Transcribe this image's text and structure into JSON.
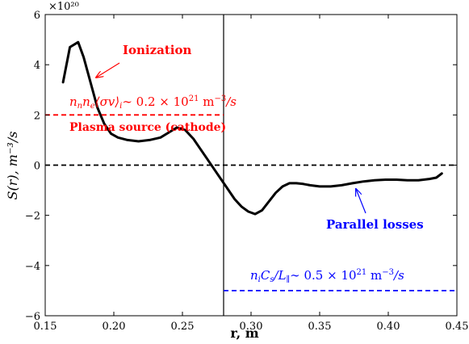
{
  "chart_data": {
    "type": "line",
    "xlabel": "r, m",
    "ylabel": "S(r),  m⁻³/s",
    "y_scale_label": "×10²⁰",
    "xlim": [
      0.15,
      0.45
    ],
    "ylim": [
      -6,
      6
    ],
    "x_ticks": [
      "0.15",
      "0.20",
      "0.25",
      "0.30",
      "0.35",
      "0.40",
      "0.45"
    ],
    "y_ticks": [
      "−6",
      "−4",
      "−2",
      "0",
      "2",
      "4",
      "6"
    ],
    "grid": false,
    "series": [
      {
        "color": "#000000",
        "style": "solid",
        "x": [
          0.163,
          0.168,
          0.174,
          0.178,
          0.183,
          0.188,
          0.193,
          0.198,
          0.203,
          0.21,
          0.218,
          0.226,
          0.234,
          0.24,
          0.246,
          0.252,
          0.258,
          0.263,
          0.268,
          0.273,
          0.278,
          0.283,
          0.288,
          0.293,
          0.298,
          0.303,
          0.308,
          0.313,
          0.318,
          0.323,
          0.328,
          0.333,
          0.338,
          0.343,
          0.35,
          0.358,
          0.366,
          0.374,
          0.382,
          0.39,
          0.398,
          0.406,
          0.414,
          0.422,
          0.43,
          0.435,
          0.439
        ],
        "y": [
          3.3,
          4.7,
          4.9,
          4.3,
          3.3,
          2.3,
          1.65,
          1.25,
          1.1,
          1.0,
          0.95,
          1.0,
          1.1,
          1.3,
          1.5,
          1.4,
          1.05,
          0.65,
          0.25,
          -0.15,
          -0.55,
          -0.95,
          -1.35,
          -1.65,
          -1.85,
          -1.95,
          -1.8,
          -1.45,
          -1.1,
          -0.85,
          -0.72,
          -0.72,
          -0.75,
          -0.8,
          -0.85,
          -0.85,
          -0.8,
          -0.72,
          -0.65,
          -0.6,
          -0.58,
          -0.58,
          -0.6,
          -0.6,
          -0.55,
          -0.5,
          -0.33
        ]
      },
      {
        "color": "#ff0000",
        "style": "dashed",
        "x": [
          0.15,
          0.28
        ],
        "y": [
          2,
          2
        ]
      },
      {
        "color": "#000000",
        "style": "dashed",
        "x": [
          0.15,
          0.45
        ],
        "y": [
          0,
          0
        ]
      },
      {
        "color": "#0000ff",
        "style": "dashed",
        "x": [
          0.28,
          0.45
        ],
        "y": [
          -5,
          -5
        ]
      }
    ],
    "vertical_line": {
      "x": 0.28,
      "color": "#000000"
    },
    "annotations": [
      {
        "text": "Ionization",
        "color": "#ff0000",
        "arrow_to": [
          0.187,
          3.6
        ]
      },
      {
        "text": "Plasma source (cathode)",
        "color": "#ff0000"
      },
      {
        "text": "Parallel losses",
        "color": "#0000ff",
        "arrow_to": [
          0.383,
          -0.65
        ]
      }
    ],
    "formulas": {
      "ionization": {
        "a": "n",
        "a_sub": "n",
        "b": "n",
        "b_sub": "e",
        "bracket": "⟨σv⟩",
        "bracket_sub": "i",
        "approx": "∼ 0.2 × 10",
        "exp": "21",
        "unit": " m",
        "unit_exp": "−3",
        "unit_tail": "/s"
      },
      "losses": {
        "a": "n",
        "a_sub": "i",
        "b": "C",
        "b_sub": "s",
        "slash": "/",
        "c": "L",
        "c_sub": "∥",
        "approx": "∼ 0.5 × 10",
        "exp": "21",
        "unit": " m",
        "unit_exp": "−3",
        "unit_tail": "/s"
      }
    }
  }
}
